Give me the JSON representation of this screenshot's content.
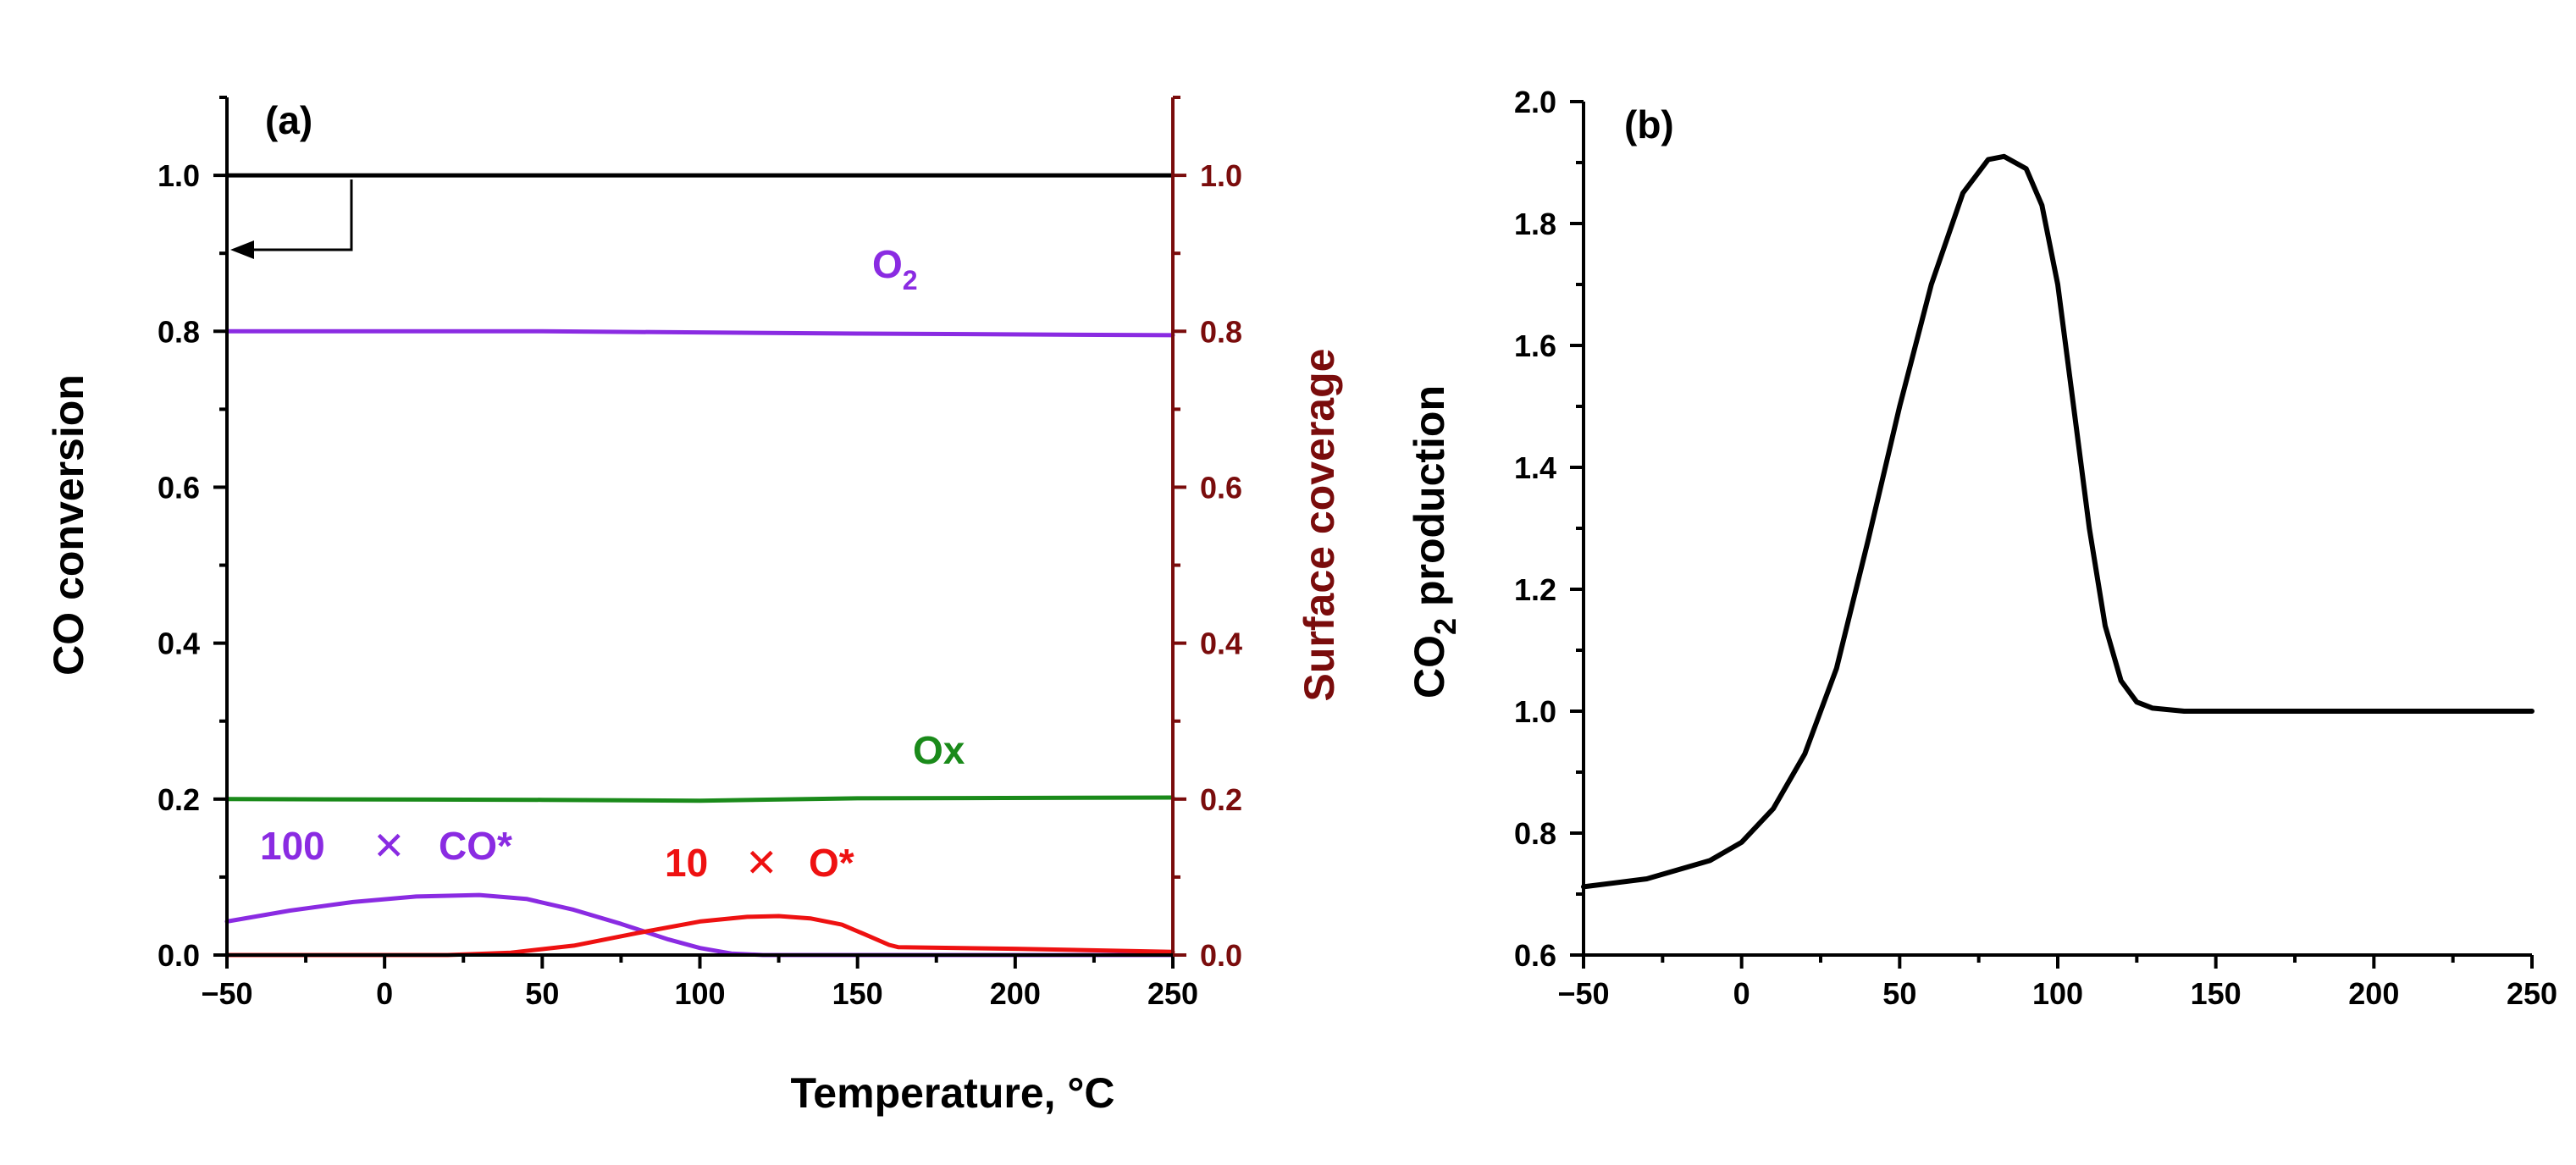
{
  "figure": {
    "shared_xlabel": "Temperature, °C"
  },
  "colors": {
    "black": "#000000",
    "purple": "#8a2be2",
    "green": "#1a8a1a",
    "red": "#ee1111",
    "darkred": "#7a0c0c"
  },
  "chart_data": [
    {
      "type": "line",
      "panel": "(a)",
      "xlabel": "Temperature, °C",
      "ylabel": "CO conversion",
      "y2label": "Surface coverage",
      "xlim": [
        -50,
        250
      ],
      "ylim": [
        0,
        1.1
      ],
      "y2lim": [
        0,
        1.1
      ],
      "xticks": [
        -50,
        0,
        50,
        100,
        150,
        200,
        250
      ],
      "xtick_labels": [
        "−50",
        "0",
        "50",
        "100",
        "150",
        "200",
        "250"
      ],
      "yticks": [
        0,
        0.2,
        0.4,
        0.6,
        0.8,
        1.0
      ],
      "ytick_labels": [
        "0.0",
        "0.2",
        "0.4",
        "0.6",
        "0.8",
        "1.0"
      ],
      "y2ticks": [
        0,
        0.2,
        0.4,
        0.6,
        0.8,
        1.0
      ],
      "y2tick_labels": [
        "0.0",
        "0.2",
        "0.4",
        "0.6",
        "0.8",
        "1.0"
      ],
      "series": [
        {
          "name": "CO conversion",
          "color": "#000000",
          "axis": "left",
          "x": [
            -50,
            250
          ],
          "y": [
            1.0,
            1.0
          ]
        },
        {
          "name": "O2",
          "color": "#8a2be2",
          "axis": "right",
          "x": [
            -50,
            50,
            150,
            250
          ],
          "y": [
            0.8,
            0.8,
            0.797,
            0.795
          ]
        },
        {
          "name": "Ox",
          "color": "#1a8a1a",
          "axis": "right",
          "x": [
            -50,
            50,
            100,
            150,
            250
          ],
          "y": [
            0.2,
            0.199,
            0.198,
            0.201,
            0.202
          ]
        },
        {
          "name": "100 × CO*",
          "color": "#8a2be2",
          "axis": "right",
          "x": [
            -50,
            -30,
            -10,
            10,
            30,
            45,
            60,
            75,
            90,
            100,
            110,
            120,
            150,
            250
          ],
          "y": [
            0.043,
            0.057,
            0.068,
            0.075,
            0.077,
            0.072,
            0.058,
            0.04,
            0.02,
            0.009,
            0.002,
            0.0,
            0.0,
            0.0
          ]
        },
        {
          "name": "10 × O*",
          "color": "#ee1111",
          "axis": "right",
          "x": [
            -50,
            20,
            40,
            60,
            80,
            100,
            115,
            125,
            135,
            145,
            152,
            160,
            163,
            200,
            250
          ],
          "y": [
            0.0,
            0.0,
            0.003,
            0.012,
            0.028,
            0.043,
            0.049,
            0.05,
            0.047,
            0.039,
            0.027,
            0.013,
            0.01,
            0.008,
            0.004
          ]
        }
      ],
      "arrow_annotation": {
        "direction": "left",
        "points_to": "left axis",
        "from_series": "CO conversion"
      },
      "labels": {
        "o2_main": "O",
        "o2_sub": "2",
        "ox": "Ox",
        "co_star_num": "100",
        "co_star_mult": "✕",
        "co_star_name": "CO*",
        "o_star_num": "10",
        "o_star_mult": "✕",
        "o_star_name": "O*"
      }
    },
    {
      "type": "line",
      "panel": "(b)",
      "xlabel": "Temperature, °C",
      "ylabel_main": "CO",
      "ylabel_sub": "2",
      "ylabel_rest": " production",
      "xlim": [
        -50,
        250
      ],
      "ylim": [
        0.6,
        2.0
      ],
      "xticks": [
        -50,
        0,
        50,
        100,
        150,
        200,
        250
      ],
      "xtick_labels": [
        "−50",
        "0",
        "50",
        "100",
        "150",
        "200",
        "250"
      ],
      "yticks": [
        0.6,
        0.8,
        1.0,
        1.2,
        1.4,
        1.6,
        1.8,
        2.0
      ],
      "ytick_labels": [
        "0.6",
        "0.8",
        "1.0",
        "1.2",
        "1.4",
        "1.6",
        "1.8",
        "2.0"
      ],
      "series": [
        {
          "name": "CO2 production",
          "color": "#000000",
          "x": [
            -50,
            -30,
            -10,
            0,
            10,
            20,
            30,
            40,
            50,
            60,
            70,
            78,
            83,
            90,
            95,
            100,
            105,
            110,
            115,
            120,
            125,
            130,
            140,
            150,
            200,
            250
          ],
          "y": [
            0.712,
            0.725,
            0.755,
            0.785,
            0.84,
            0.93,
            1.07,
            1.28,
            1.5,
            1.7,
            1.85,
            1.905,
            1.91,
            1.89,
            1.83,
            1.7,
            1.5,
            1.3,
            1.14,
            1.05,
            1.015,
            1.005,
            1.0,
            1.0,
            1.0,
            1.0
          ]
        }
      ]
    }
  ]
}
